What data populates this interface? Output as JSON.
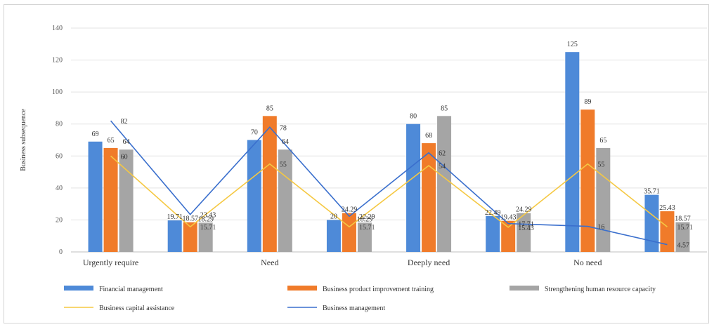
{
  "chart_data": {
    "type": "bar",
    "ylabel": "Business subsequence",
    "ylim": [
      0,
      140
    ],
    "yticks": [
      0,
      20,
      40,
      60,
      80,
      100,
      120,
      140
    ],
    "grid": true,
    "legend_position": "bottom",
    "x": [
      "Urgently require",
      "",
      "Need",
      "",
      "Deeply need",
      "",
      "No need",
      ""
    ],
    "x_tick_labels": [
      "Urgently require",
      "Need",
      "Deeply need",
      "No need"
    ],
    "series": [
      {
        "name": "Financial management",
        "kind": "bar",
        "color": "#4e8ad8",
        "values": [
          69,
          19.71,
          70,
          20,
          80,
          22.49,
          125,
          35.71
        ],
        "labels": [
          "69",
          "19.71",
          "70",
          "20",
          "80",
          "22.49",
          "125",
          "35.71"
        ]
      },
      {
        "name": "Business product improvement training",
        "kind": "bar",
        "color": "#f07b2a",
        "values": [
          65,
          18.57,
          85,
          24.29,
          68,
          19.43,
          89,
          25.43
        ],
        "labels": [
          "65",
          "18.57",
          "85",
          "24.29",
          "68",
          "19.43",
          "89",
          "25.43"
        ]
      },
      {
        "name": "Strengthening human resource capacity",
        "kind": "bar",
        "color": "#a5a5a5",
        "values": [
          64,
          18.29,
          64,
          18.29,
          85,
          24.29,
          65,
          18.57
        ],
        "labels": [
          "64",
          "18.29",
          "64",
          "18.29",
          "85",
          "24.29",
          "65",
          "18.57"
        ]
      },
      {
        "name": "Business capital assistance",
        "kind": "line",
        "color": "#f5c842",
        "values": [
          60,
          15.71,
          55,
          15.71,
          54,
          15.43,
          55,
          15.71
        ],
        "labels": [
          "60",
          "15.71",
          "55",
          "15.71",
          "54",
          "15.43",
          "55",
          "15.71"
        ]
      },
      {
        "name": "Business management",
        "kind": "line",
        "color": "#3a6fcd",
        "values": [
          82,
          23.43,
          78,
          22.29,
          62,
          17.71,
          16,
          4.57
        ],
        "labels": [
          "82",
          "23.43",
          "78",
          "22.29",
          "62",
          "17.71",
          "16",
          "4.57"
        ]
      }
    ]
  }
}
